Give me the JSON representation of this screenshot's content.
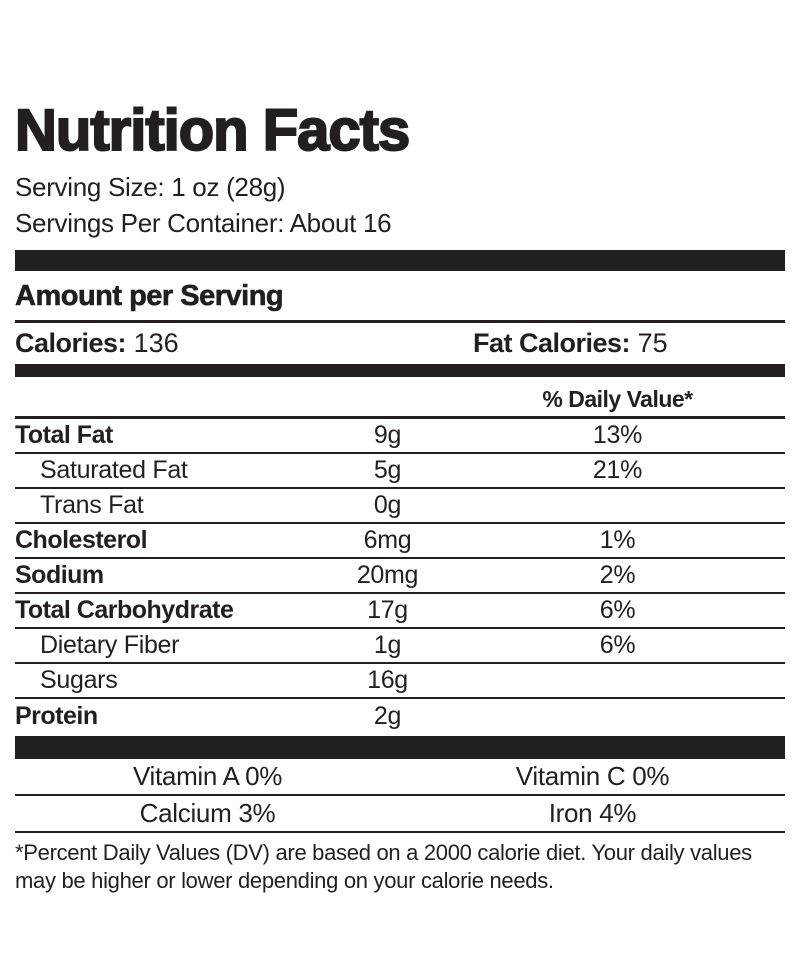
{
  "label": {
    "title": "Nutrition Facts",
    "serving_size": "Serving Size: 1 oz (28g)",
    "servings_per_container": "Servings Per Container: About 16",
    "amount_per_serving": "Amount per Serving",
    "calories_label": "Calories:",
    "calories_value": "136",
    "fat_calories_label": "Fat Calories:",
    "fat_calories_value": "75",
    "daily_value_header": "% Daily Value*",
    "rows": [
      {
        "name": "Total Fat",
        "amount": "9g",
        "dv": "13%",
        "bold": true,
        "indent": false
      },
      {
        "name": "Saturated Fat",
        "amount": "5g",
        "dv": "21%",
        "bold": false,
        "indent": true
      },
      {
        "name": "Trans Fat",
        "amount": "0g",
        "dv": "",
        "bold": false,
        "indent": true
      },
      {
        "name": "Cholesterol",
        "amount": "6mg",
        "dv": "1%",
        "bold": true,
        "indent": false
      },
      {
        "name": "Sodium",
        "amount": "20mg",
        "dv": "2%",
        "bold": true,
        "indent": false
      },
      {
        "name": "Total Carbohydrate",
        "amount": "17g",
        "dv": "6%",
        "bold": true,
        "indent": false
      },
      {
        "name": "Dietary Fiber",
        "amount": "1g",
        "dv": "6%",
        "bold": false,
        "indent": true
      },
      {
        "name": "Sugars",
        "amount": "16g",
        "dv": "",
        "bold": false,
        "indent": true
      },
      {
        "name": "Protein",
        "amount": "2g",
        "dv": "",
        "bold": true,
        "indent": false
      }
    ],
    "micronutrients": [
      {
        "left": "Vitamin A 0%",
        "right": "Vitamin C 0%"
      },
      {
        "left": "Calcium 3%",
        "right": "Iron 4%"
      }
    ],
    "footnote": "*Percent Daily Values (DV) are based on a 2000 calorie diet. Your daily values may be higher or lower depending on your calorie needs.",
    "colors": {
      "text": "#231f20",
      "bar": "#231f20",
      "background": "#ffffff"
    }
  }
}
